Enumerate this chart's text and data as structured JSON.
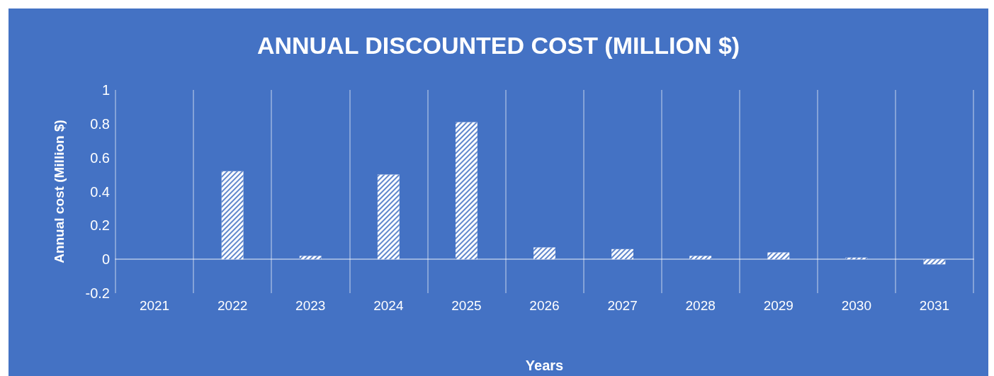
{
  "chart_data": {
    "type": "bar",
    "title": "ANNUAL DISCOUNTED COST (MILLION $)",
    "xlabel": "Years",
    "ylabel": "Annual cost (Million $)",
    "categories": [
      "2021",
      "2022",
      "2023",
      "2024",
      "2025",
      "2026",
      "2027",
      "2028",
      "2029",
      "2030",
      "2031"
    ],
    "values": [
      0,
      0.52,
      0.02,
      0.5,
      0.81,
      0.07,
      0.06,
      0.02,
      0.04,
      0.01,
      -0.03
    ],
    "color": "#ffffff",
    "ylim": [
      -0.2,
      1
    ],
    "yticks": [
      -0.2,
      0,
      0.2,
      0.4,
      0.6,
      0.8,
      1
    ],
    "grid": "x"
  }
}
